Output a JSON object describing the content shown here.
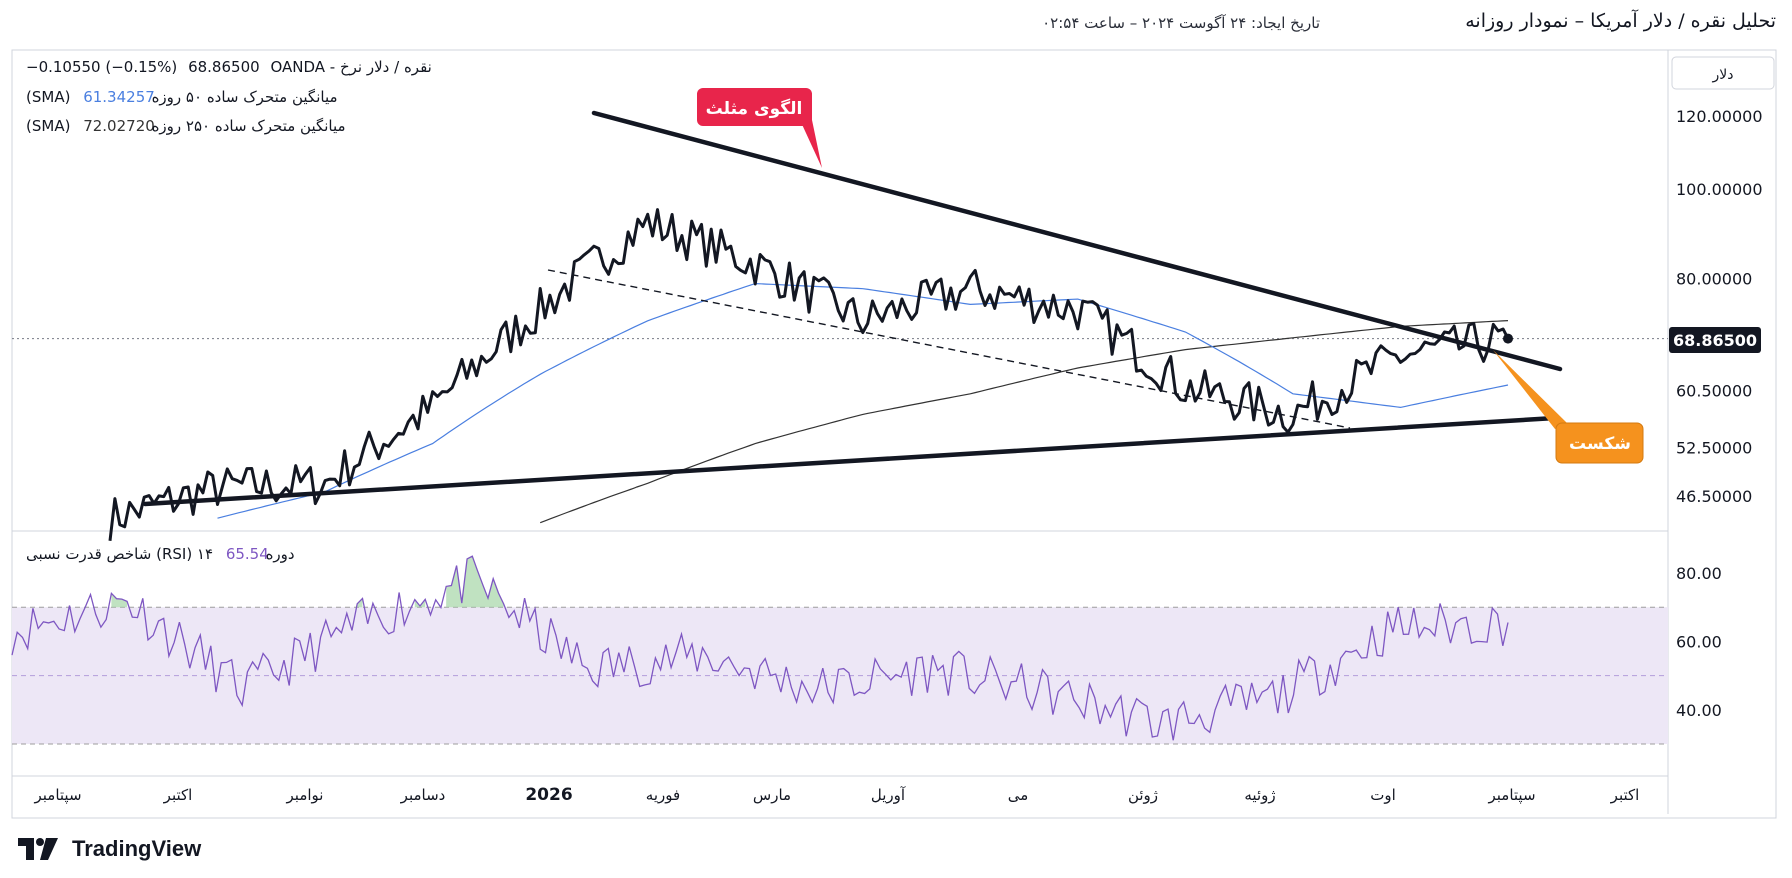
{
  "header": {
    "title": "تحلیل نقره / دلار آمریکا – نمودار روزانه",
    "created": "تاریخ ایجاد: ۲۴ آگوست ۲۰۲۴ – ساعت ۰۲:۵۴"
  },
  "legend": {
    "symbol": "OANDA - نقره / دلار نرخ",
    "price": "68.86500",
    "change": "−0.10550 (−0.15%)",
    "sma50_label": "(SMA) میانگین متحرک ساده ۵۰ روزه",
    "sma50_value": "61.34257",
    "sma250_label": "(SMA) میانگین متحرک ساده ۲۵۰ روزه",
    "sma250_value": "72.02720",
    "rsi_label": "شاخص قدرت نسبی (RSI) ۱۴ دوره",
    "rsi_value": "65.54"
  },
  "annotations": {
    "triangle_label": "الگوی مثلث",
    "breakout_label": "شکست"
  },
  "axis": {
    "currency_button": "دلار",
    "last_price_label": "68.86500",
    "price_ticks": [
      "120.00000",
      "100.00000",
      "80.00000",
      "60.50000",
      "52.50000",
      "46.50000"
    ],
    "rsi_ticks": [
      "80.00",
      "60.00",
      "40.00"
    ],
    "time_ticks": [
      "سپتامبر",
      "اکتبر",
      "نوامبر",
      "دسامبر",
      "2026",
      "فوریه",
      "مارس",
      "آوریل",
      "می",
      "ژوئن",
      "ژوئیه",
      "اوت",
      "سپتامبر",
      "اکتبر"
    ]
  },
  "footer": {
    "brand": "TradingView"
  },
  "colors": {
    "price_line": "#131722",
    "sma50": "#4a7fe0",
    "sma250": "#333333",
    "rsi_line": "#7e57c2",
    "rsi_band": "#ede7f6",
    "overbought_fill": "#a5d6a7",
    "triangle_badge": "#e8254b",
    "breakout_badge": "#f5921e"
  },
  "chart_data": [
    {
      "type": "line",
      "y_scale": "log",
      "y_ticks": [
        120,
        100,
        80,
        60.5,
        52.5,
        46.5
      ],
      "ylim": [
        43,
        130
      ],
      "x": [
        "سپتامبر",
        "اکتبر",
        "نوامبر",
        "دسامبر",
        "2026",
        "فوریه",
        "مارس",
        "آوریل",
        "می",
        "ژوئن",
        "ژوئیه",
        "اوت",
        "سپتامبر",
        "اکتبر"
      ],
      "series": [
        {
          "name": "OANDA - نقره / دلار نرخ",
          "values": [
            44,
            47.5,
            48,
            58,
            74,
            92,
            83,
            72,
            78,
            74,
            61,
            57,
            66,
            68.865
          ]
        },
        {
          "name": "(SMA) میانگین متحرک ساده ۵۰ روزه",
          "values": [
            null,
            44,
            47,
            53,
            63,
            72,
            79,
            78,
            75,
            76,
            70,
            60,
            58,
            61.34
          ]
        },
        {
          "name": "(SMA) میانگین متحرک ساده ۲۵۰ روزه",
          "values": [
            null,
            null,
            null,
            null,
            43.5,
            48,
            53,
            57,
            60,
            64,
            67,
            69,
            71,
            72.03
          ]
        }
      ],
      "last_price": 68.865,
      "grid": false
    },
    {
      "type": "line",
      "y_ticks": [
        80,
        60,
        40
      ],
      "ylim": [
        25,
        90
      ],
      "overbought": 70,
      "oversold": 30,
      "midline": 50,
      "x": [
        "سپتامبر",
        "اکتبر",
        "نوامبر",
        "دسامبر",
        "2026",
        "فوریه",
        "مارس",
        "آوریل",
        "می",
        "ژوئن",
        "ژوئیه",
        "اوت",
        "سپتامبر",
        "اکتبر"
      ],
      "series": [
        {
          "name": "شاخص قدرت نسبی (RSI) ۱۴ دوره",
          "values": [
            63,
            72,
            46,
            65,
            78,
            52,
            56,
            46,
            52,
            45,
            36,
            44,
            64,
            65.54
          ]
        }
      ]
    }
  ]
}
